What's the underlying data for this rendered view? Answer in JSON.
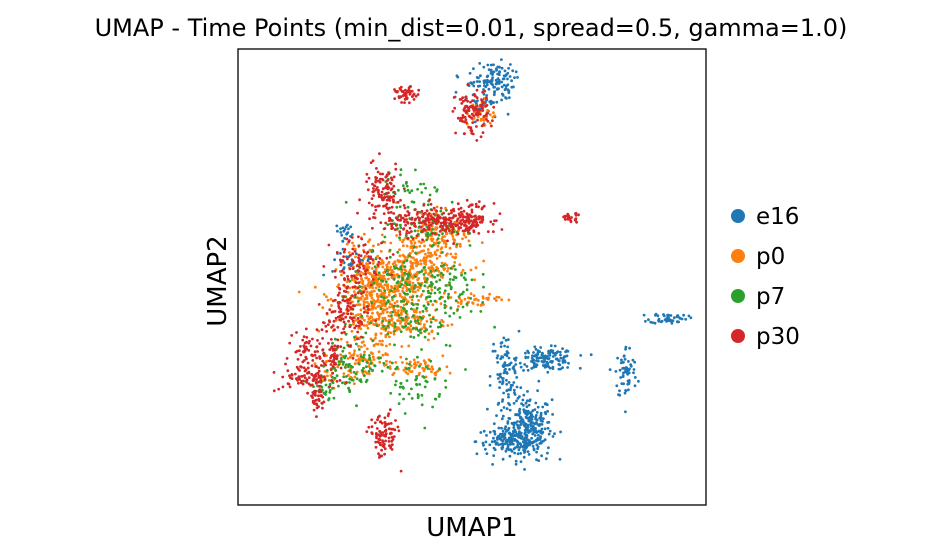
{
  "chart_data": {
    "type": "scatter",
    "title": "UMAP - Time Points (min_dist=0.01, spread=0.5, gamma=1.0)",
    "xlabel": "UMAP1",
    "ylabel": "UMAP2",
    "xlim": [
      0,
      10
    ],
    "ylim": [
      0,
      10
    ],
    "grid": false,
    "ticks": false,
    "legend_position": "right",
    "series": [
      {
        "name": "e16",
        "color": "#1f77b4",
        "clusters": [
          {
            "cx": 6.2,
            "cy": 1.7,
            "sx": 0.25,
            "sy": 0.35,
            "n": 260
          },
          {
            "cx": 5.8,
            "cy": 1.4,
            "sx": 0.35,
            "sy": 0.15,
            "n": 140
          },
          {
            "cx": 6.6,
            "cy": 3.2,
            "sx": 0.3,
            "sy": 0.12,
            "n": 140
          },
          {
            "cx": 5.7,
            "cy": 2.8,
            "sx": 0.15,
            "sy": 0.5,
            "n": 90
          },
          {
            "cx": 8.3,
            "cy": 2.9,
            "sx": 0.12,
            "sy": 0.3,
            "n": 60
          },
          {
            "cx": 9.2,
            "cy": 4.1,
            "sx": 0.2,
            "sy": 0.06,
            "n": 50
          },
          {
            "cx": 5.5,
            "cy": 9.3,
            "sx": 0.2,
            "sy": 0.2,
            "n": 90
          },
          {
            "cx": 5.2,
            "cy": 8.9,
            "sx": 0.25,
            "sy": 0.35,
            "n": 60
          },
          {
            "cx": 2.5,
            "cy": 5.3,
            "sx": 0.3,
            "sy": 0.2,
            "n": 40
          },
          {
            "cx": 2.3,
            "cy": 6.0,
            "sx": 0.1,
            "sy": 0.1,
            "n": 20
          }
        ]
      },
      {
        "name": "p0",
        "color": "#ff7f0e",
        "clusters": [
          {
            "cx": 3.0,
            "cy": 4.6,
            "sx": 0.45,
            "sy": 0.45,
            "n": 450
          },
          {
            "cx": 3.8,
            "cy": 5.3,
            "sx": 0.45,
            "sy": 0.35,
            "n": 260
          },
          {
            "cx": 3.5,
            "cy": 4.0,
            "sx": 0.5,
            "sy": 0.2,
            "n": 120
          },
          {
            "cx": 4.4,
            "cy": 6.0,
            "sx": 0.3,
            "sy": 0.3,
            "n": 90
          },
          {
            "cx": 2.7,
            "cy": 3.2,
            "sx": 0.35,
            "sy": 0.2,
            "n": 70
          },
          {
            "cx": 5.0,
            "cy": 4.5,
            "sx": 0.3,
            "sy": 0.08,
            "n": 40
          },
          {
            "cx": 3.9,
            "cy": 3.0,
            "sx": 0.3,
            "sy": 0.1,
            "n": 50
          },
          {
            "cx": 5.2,
            "cy": 8.6,
            "sx": 0.15,
            "sy": 0.15,
            "n": 40
          },
          {
            "cx": 2.0,
            "cy": 2.9,
            "sx": 0.2,
            "sy": 0.15,
            "n": 30
          }
        ]
      },
      {
        "name": "p7",
        "color": "#2ca02c",
        "clusters": [
          {
            "cx": 3.5,
            "cy": 4.5,
            "sx": 0.6,
            "sy": 0.6,
            "n": 220
          },
          {
            "cx": 4.0,
            "cy": 6.2,
            "sx": 0.4,
            "sy": 0.3,
            "n": 90
          },
          {
            "cx": 2.5,
            "cy": 3.1,
            "sx": 0.35,
            "sy": 0.3,
            "n": 90
          },
          {
            "cx": 3.8,
            "cy": 2.6,
            "sx": 0.3,
            "sy": 0.3,
            "n": 50
          },
          {
            "cx": 4.5,
            "cy": 4.8,
            "sx": 0.3,
            "sy": 0.3,
            "n": 50
          },
          {
            "cx": 1.8,
            "cy": 2.6,
            "sx": 0.15,
            "sy": 0.2,
            "n": 30
          },
          {
            "cx": 3.6,
            "cy": 7.0,
            "sx": 0.25,
            "sy": 0.2,
            "n": 25
          }
        ]
      },
      {
        "name": "p30",
        "color": "#d62728",
        "clusters": [
          {
            "cx": 4.3,
            "cy": 6.2,
            "sx": 0.5,
            "sy": 0.15,
            "n": 220
          },
          {
            "cx": 3.1,
            "cy": 6.8,
            "sx": 0.2,
            "sy": 0.35,
            "n": 120
          },
          {
            "cx": 5.0,
            "cy": 6.3,
            "sx": 0.2,
            "sy": 0.15,
            "n": 80
          },
          {
            "cx": 1.5,
            "cy": 2.8,
            "sx": 0.3,
            "sy": 0.15,
            "n": 90
          },
          {
            "cx": 1.7,
            "cy": 2.3,
            "sx": 0.1,
            "sy": 0.15,
            "n": 30
          },
          {
            "cx": 3.1,
            "cy": 1.5,
            "sx": 0.15,
            "sy": 0.25,
            "n": 90
          },
          {
            "cx": 1.6,
            "cy": 3.4,
            "sx": 0.2,
            "sy": 0.2,
            "n": 60
          },
          {
            "cx": 2.0,
            "cy": 3.3,
            "sx": 0.1,
            "sy": 0.25,
            "n": 40
          },
          {
            "cx": 2.3,
            "cy": 4.1,
            "sx": 0.25,
            "sy": 0.25,
            "n": 70
          },
          {
            "cx": 5.0,
            "cy": 8.6,
            "sx": 0.18,
            "sy": 0.25,
            "n": 110
          },
          {
            "cx": 3.6,
            "cy": 9.0,
            "sx": 0.12,
            "sy": 0.08,
            "n": 50
          },
          {
            "cx": 7.1,
            "cy": 6.3,
            "sx": 0.12,
            "sy": 0.05,
            "n": 25
          },
          {
            "cx": 2.6,
            "cy": 5.4,
            "sx": 0.3,
            "sy": 0.25,
            "n": 70
          },
          {
            "cx": 2.4,
            "cy": 4.6,
            "sx": 0.2,
            "sy": 0.3,
            "n": 50
          }
        ]
      }
    ]
  }
}
